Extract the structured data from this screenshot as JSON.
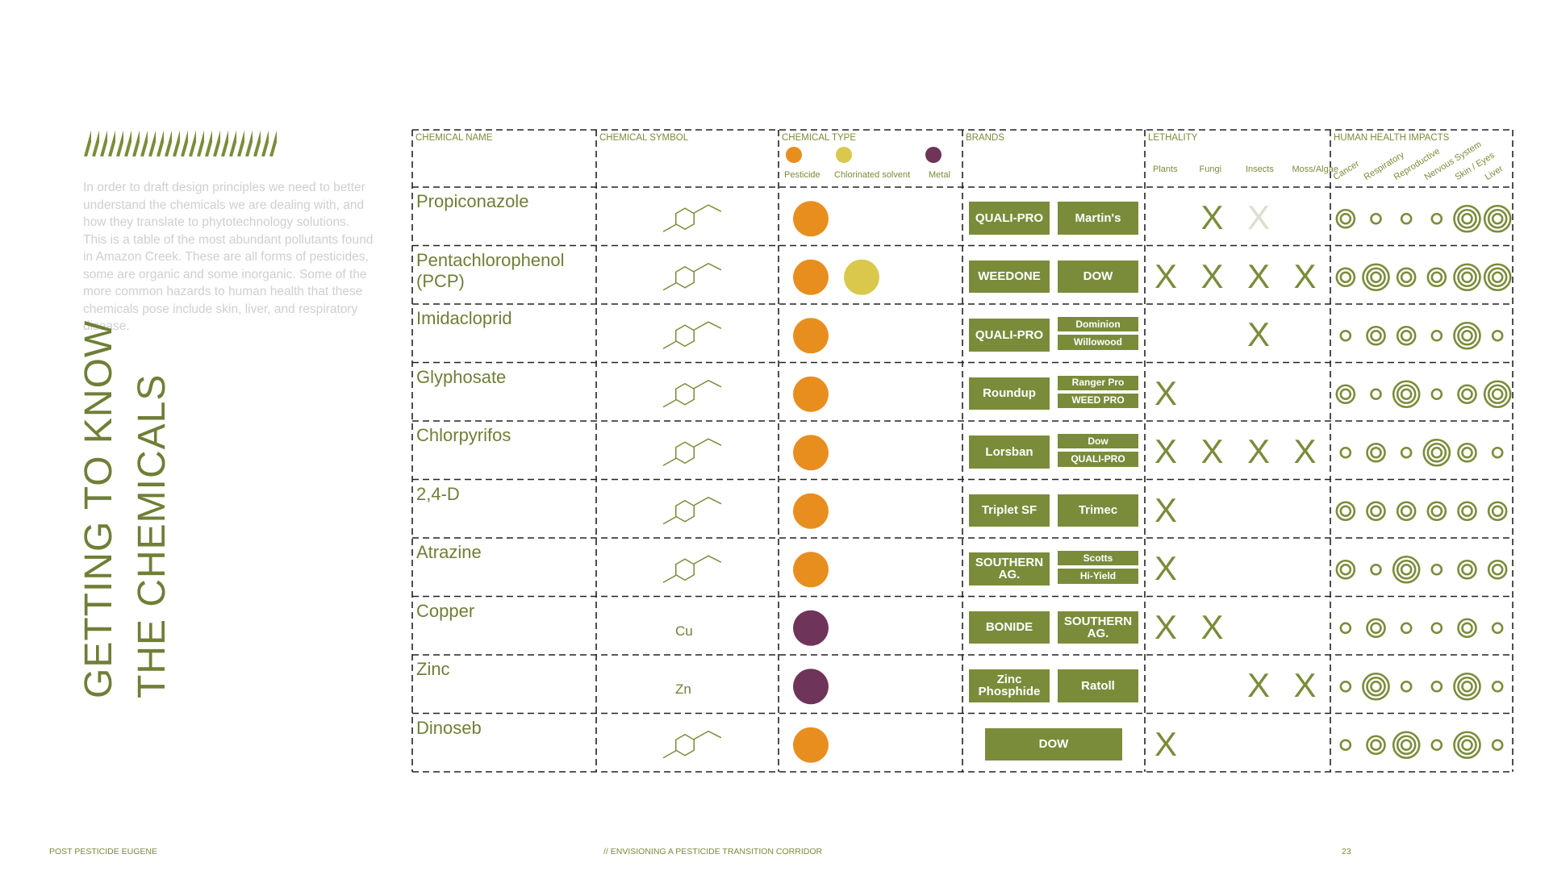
{
  "sidebar": {
    "text": "In order to draft design principles we need to better understand the chemicals we are dealing with, and how they translate to phytotechnology solutions. This is a table of the most abundant pollutants found in Amazon Creek. These are all forms of pesticides, some are organic and some inorganic. Some of the more common hazards to human health that these chemicals pose include skin, liver, and respiratory disease.",
    "title_lines": [
      "GETTING TO KNOW",
      "THE CHEMICALS"
    ]
  },
  "table": {
    "columns": [
      "CHEMICAL NAME",
      "CHEMICAL SYMBOL",
      "CHEMICAL TYPE",
      "BRANDS",
      "LETHALITY",
      "HUMAN HEALTH IMPACTS"
    ],
    "chemical_types": [
      {
        "name": "Pesticide",
        "color": "#e88e1f"
      },
      {
        "name": "Chlorinated solvent",
        "color": "#d9c84c"
      },
      {
        "name": "Metal",
        "color": "#6e3459"
      }
    ],
    "lethality_labels": [
      "Plants",
      "Fungi",
      "Insects",
      "Moss/Algae"
    ],
    "health_labels": [
      "Cancer",
      "Respiratory",
      "Reproductive",
      "Nervous System",
      "Skin / Eyes",
      "Liver"
    ],
    "rows": [
      {
        "name": "Propiconazole",
        "types": [
          0
        ],
        "brands": [
          "QUALI-PRO",
          "Martin's"
        ],
        "lethality": [
          null,
          "X",
          {
            "label": "X",
            "faded": true
          },
          null
        ],
        "health": [
          2,
          1,
          1,
          1,
          3,
          3
        ]
      },
      {
        "name": "Pentachlorophenol (PCP)",
        "types": [
          0,
          1
        ],
        "brands": [
          "WEEDONE",
          "DOW"
        ],
        "lethality": [
          "X",
          "X",
          "X",
          "X"
        ],
        "health": [
          2,
          3,
          2,
          2,
          3,
          3
        ]
      },
      {
        "name": "Imidacloprid",
        "types": [
          0
        ],
        "brands": [
          "QUALI-PRO",
          "Dominion",
          "Willowood"
        ],
        "lethality": [
          null,
          null,
          "X",
          null
        ],
        "health": [
          1,
          2,
          2,
          1,
          3,
          1
        ]
      },
      {
        "name": "Glyphosate",
        "types": [
          0
        ],
        "brands": [
          "Roundup",
          "Ranger Pro",
          "WEED PRO"
        ],
        "lethality": [
          "X",
          null,
          null,
          null
        ],
        "health": [
          2,
          1,
          3,
          1,
          2,
          3
        ]
      },
      {
        "name": "Chlorpyrifos",
        "types": [
          0
        ],
        "brands": [
          "Lorsban",
          "Dow",
          "QUALI-PRO"
        ],
        "lethality": [
          "X",
          "X",
          "X",
          "X"
        ],
        "health": [
          1,
          2,
          1,
          3,
          2,
          1
        ]
      },
      {
        "name": "2,4-D",
        "types": [
          0
        ],
        "brands": [
          "Triplet SF",
          "Trimec"
        ],
        "lethality": [
          "X",
          null,
          null,
          null
        ],
        "health": [
          2,
          2,
          2,
          2,
          2,
          2
        ]
      },
      {
        "name": "Atrazine",
        "types": [
          0
        ],
        "brands": [
          "SOUTHERN AG.",
          "Scotts",
          "Hi-Yield"
        ],
        "lethality": [
          "X",
          null,
          null,
          null
        ],
        "health": [
          2,
          1,
          3,
          1,
          2,
          2
        ]
      },
      {
        "name": "Copper",
        "symbol": "Cu",
        "types": [
          2
        ],
        "brands": [
          "BONIDE",
          "SOUTHERN AG."
        ],
        "lethality": [
          "X",
          "X",
          null,
          null
        ],
        "health": [
          1,
          2,
          1,
          1,
          2,
          1
        ]
      },
      {
        "name": "Zinc",
        "symbol": "Zn",
        "types": [
          2
        ],
        "brands": [
          "Zinc Phosphide",
          "Ratoll"
        ],
        "lethality": [
          null,
          null,
          "X",
          "X"
        ],
        "health": [
          1,
          3,
          1,
          1,
          3,
          1
        ]
      },
      {
        "name": "Dinoseb",
        "types": [
          0
        ],
        "brands": [
          "DOW"
        ],
        "lethality": [
          "X",
          null,
          null,
          null
        ],
        "health": [
          1,
          2,
          3,
          1,
          3,
          1
        ]
      }
    ]
  },
  "footer": {
    "left": "POST PESTICIDE EUGENE",
    "center": "// ENVISIONING A PESTICIDE TRANSITION CORRIDOR",
    "page": "23"
  }
}
